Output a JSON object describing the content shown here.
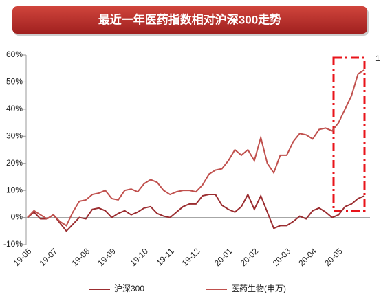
{
  "chart_data": {
    "type": "line",
    "title": "最近一年医药指数相对沪深300走势",
    "annotation": "1",
    "categories": [
      "19-06",
      null,
      null,
      null,
      "19-07",
      null,
      null,
      null,
      null,
      "19-08",
      null,
      null,
      null,
      "19-09",
      null,
      null,
      null,
      null,
      "19-10",
      null,
      null,
      null,
      "19-11",
      null,
      null,
      null,
      "19-12",
      null,
      null,
      null,
      null,
      "20-01",
      null,
      null,
      null,
      "20-02",
      null,
      null,
      null,
      null,
      "20-03",
      null,
      null,
      null,
      "20-04",
      null,
      null,
      null,
      "20-05",
      null,
      null,
      null,
      null
    ],
    "series": [
      {
        "name": "沪深300",
        "color": "#9b2d30",
        "values": [
          0,
          2,
          -0.5,
          -0.5,
          1,
          -2,
          -5,
          -2.5,
          0,
          -0.5,
          3,
          3.5,
          2.5,
          0,
          1.5,
          2.5,
          1,
          2,
          3.5,
          4,
          1.5,
          0.5,
          0,
          2,
          4,
          5,
          5,
          8,
          8.5,
          8.5,
          4.5,
          3,
          2,
          4,
          8.5,
          3,
          8,
          2,
          -4,
          -3,
          -3,
          -1.5,
          0.5,
          -0.5,
          2.5,
          3.5,
          2,
          0,
          1,
          4,
          5,
          7,
          8
        ]
      },
      {
        "name": "医药生物(申万)",
        "color": "#c0504d",
        "values": [
          0,
          2.5,
          1,
          -0.5,
          1,
          -1.5,
          -3,
          2,
          6,
          6.5,
          8.5,
          9,
          10,
          7,
          6.5,
          10,
          10.5,
          9.5,
          12.5,
          14,
          13,
          10,
          8.5,
          9.5,
          10,
          10,
          9.5,
          12,
          16,
          17.5,
          18,
          21,
          25,
          23,
          25,
          21,
          29.5,
          20,
          16.5,
          23,
          23,
          28,
          31,
          30.5,
          29,
          32.5,
          33,
          32,
          35,
          40,
          45,
          53,
          54.5
        ]
      }
    ],
    "ylim": [
      -10,
      60
    ],
    "yticks": [
      {
        "value": -10,
        "label": "-10%"
      },
      {
        "value": 0,
        "label": "0%"
      },
      {
        "value": 10,
        "label": "10%"
      },
      {
        "value": 20,
        "label": "20%"
      },
      {
        "value": 30,
        "label": "30%"
      },
      {
        "value": 40,
        "label": "40%"
      },
      {
        "value": 50,
        "label": "50%"
      },
      {
        "value": 60,
        "label": "60%"
      }
    ],
    "grid": false
  }
}
